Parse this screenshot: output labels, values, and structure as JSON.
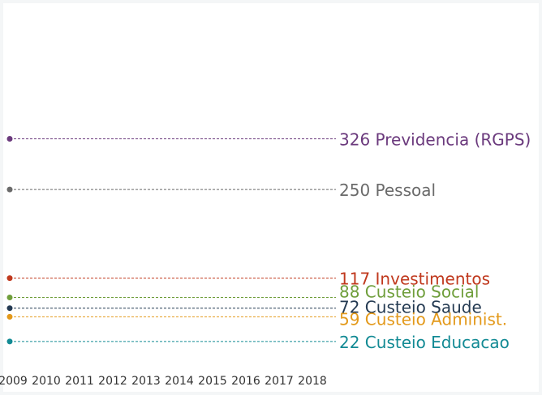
{
  "chart_data": {
    "type": "line",
    "title": "",
    "xlabel": "",
    "ylabel": "",
    "x": [
      "2009",
      "2010",
      "2011",
      "2012",
      "2013",
      "2014",
      "2015",
      "2016",
      "2017",
      "2018"
    ],
    "ylim": [
      0,
      340
    ],
    "grid": false,
    "legend": "none",
    "series": [
      {
        "name": "Previdencia (RGPS)",
        "values": [
          326,
          null,
          null,
          null,
          null,
          null,
          null,
          null,
          null,
          null
        ],
        "end_value": 326,
        "label": "326 Previdencia (RGPS)",
        "color": "#6b3a7d"
      },
      {
        "name": "Pessoal",
        "values": [
          250,
          null,
          null,
          null,
          null,
          null,
          null,
          null,
          null,
          null
        ],
        "end_value": 250,
        "label": "250 Pessoal",
        "color": "#6a6a6a"
      },
      {
        "name": "Investimentos",
        "values": [
          117,
          null,
          null,
          null,
          null,
          null,
          null,
          null,
          null,
          null
        ],
        "end_value": 117,
        "label": "117 Investimentos",
        "color": "#c0391e"
      },
      {
        "name": "Custeio Social",
        "values": [
          88,
          null,
          null,
          null,
          null,
          null,
          null,
          null,
          null,
          null
        ],
        "end_value": 88,
        "label": "88 Custeio Social",
        "color": "#6f9e3b"
      },
      {
        "name": "Custeio Saude",
        "values": [
          72,
          null,
          null,
          null,
          null,
          null,
          null,
          null,
          null,
          null
        ],
        "end_value": 72,
        "label": "72 Custeio Saude",
        "color": "#243a52"
      },
      {
        "name": "Custeio Administ.",
        "values": [
          59,
          null,
          null,
          null,
          null,
          null,
          null,
          null,
          null,
          null
        ],
        "end_value": 59,
        "label": "59 Custeio Administ.",
        "color": "#e3991a"
      },
      {
        "name": "Custeio Educacao",
        "values": [
          22,
          null,
          null,
          null,
          null,
          null,
          null,
          null,
          null,
          null
        ],
        "end_value": 22,
        "label": "22 Custeio Educacao",
        "color": "#128a94"
      }
    ]
  }
}
